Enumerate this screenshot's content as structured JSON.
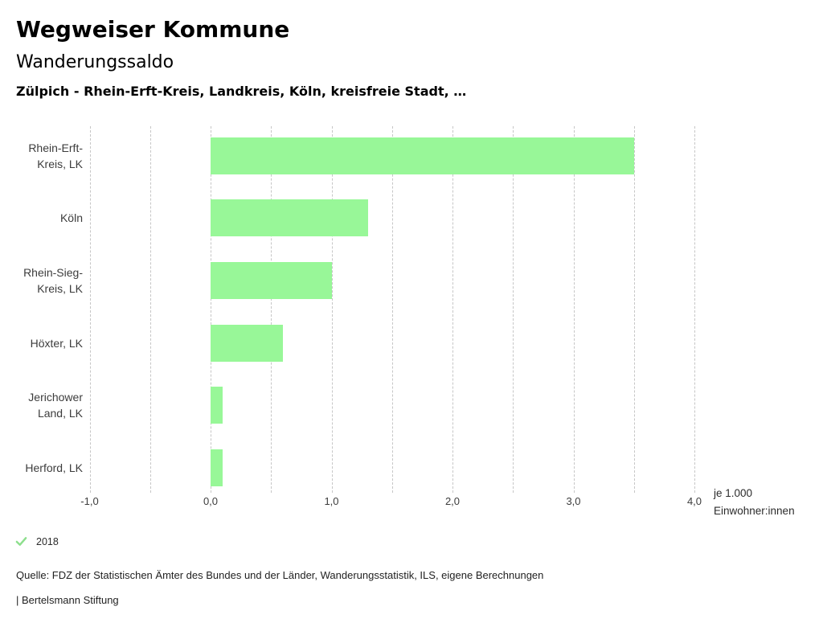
{
  "header": {
    "app_title": "Wegweiser Kommune"
  },
  "chart_data": {
    "type": "bar",
    "orientation": "horizontal",
    "title": "Wanderungssaldo",
    "subtitle": "Zülpich - Rhein-Erft-Kreis, Landkreis, Köln, kreisfreie Stadt, …",
    "categories": [
      "Rhein-Erft-Kreis, LK",
      "Köln",
      "Rhein-Sieg-Kreis, LK",
      "Höxter, LK",
      "Jerichower Land, LK",
      "Herford, LK"
    ],
    "values": [
      3.5,
      1.3,
      1.0,
      0.6,
      0.1,
      0.1
    ],
    "year": "2018",
    "xlim": [
      -1.0,
      4.0
    ],
    "xtick_values": [
      -1,
      0,
      1,
      2,
      3,
      4
    ],
    "xtick_labels": [
      "-1,0",
      "0,0",
      "1,0",
      "2,0",
      "3,0",
      "4,0"
    ],
    "minor_gridline_step": 0.5,
    "grid": "dashed-vertical",
    "bar_color": "#98f798",
    "unit_label_lines": [
      "je 1.000",
      "Einwohner:innen"
    ]
  },
  "legend": {
    "year": "2018",
    "check_color": "#8ddf8d"
  },
  "footer": {
    "source": "Quelle: FDZ der Statistischen Ämter des Bundes und der Länder, Wanderungsstatistik, ILS, eigene Berechnungen",
    "branding": "| Bertelsmann Stiftung"
  }
}
